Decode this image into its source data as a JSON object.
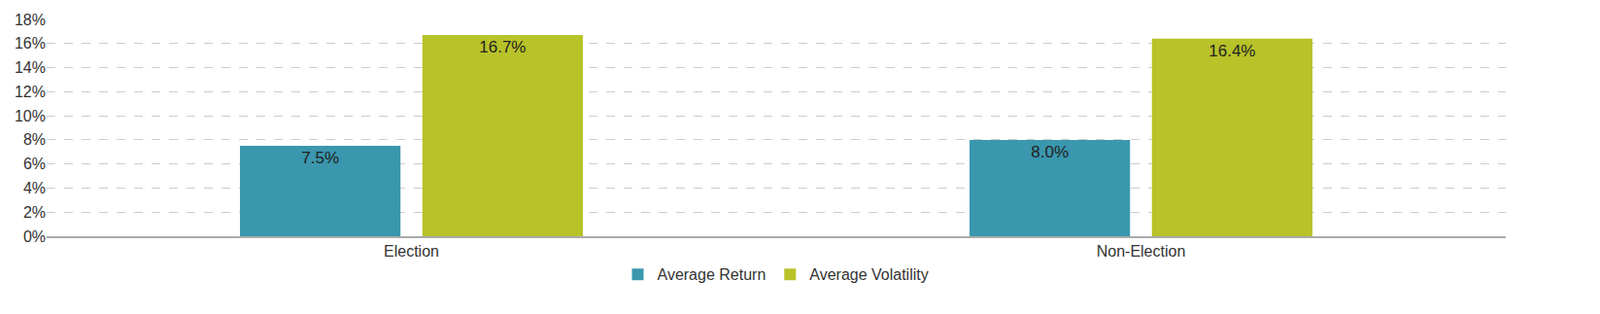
{
  "chart_data": {
    "type": "bar",
    "categories": [
      "Election",
      "Non-Election"
    ],
    "series": [
      {
        "name": "Average Return",
        "color": "#3a97ad",
        "values": [
          7.5,
          8.0
        ],
        "value_labels": [
          "7.5%",
          "8.0%"
        ]
      },
      {
        "name": "Average Volatility",
        "color": "#b8c229",
        "values": [
          16.7,
          16.4
        ],
        "value_labels": [
          "16.7%",
          "16.4%"
        ]
      }
    ],
    "ylim": [
      0,
      18
    ],
    "yticks": [
      {
        "value": 0,
        "label": "0%"
      },
      {
        "value": 2,
        "label": "2%"
      },
      {
        "value": 4,
        "label": "4%"
      },
      {
        "value": 6,
        "label": "6%"
      },
      {
        "value": 8,
        "label": "8%"
      },
      {
        "value": 10,
        "label": "10%"
      },
      {
        "value": 12,
        "label": "12%"
      },
      {
        "value": 14,
        "label": "14%"
      },
      {
        "value": 16,
        "label": "16%"
      },
      {
        "value": 18,
        "label": "18%"
      }
    ],
    "grid": true,
    "data_labels": true,
    "legend": "bottom"
  }
}
